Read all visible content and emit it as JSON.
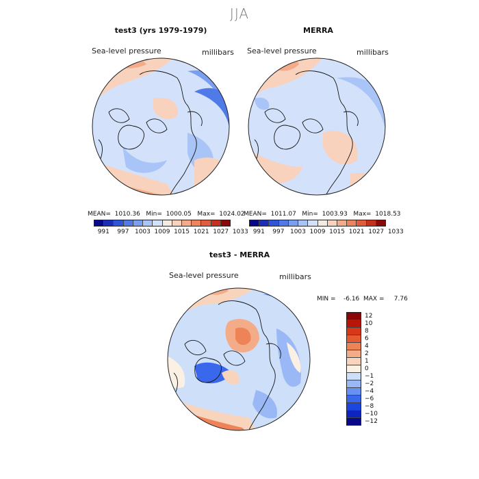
{
  "season": "JJA",
  "panels": [
    {
      "title": "test3 (yrs 1979-1979)",
      "variable": "Sea-level pressure",
      "units": "millibars",
      "stats": "MEAN=  1010.36   Min=  1000.05   Max=  1024.02"
    },
    {
      "title": "MERRA",
      "variable": "Sea-level pressure",
      "units": "millibars",
      "stats": "MEAN=  1011.07   Min=  1003.93   Max=  1018.53"
    },
    {
      "title": "test3 - MERRA",
      "variable": "Sea-level pressure",
      "units": "millibars",
      "stats": "MIN =    -6.16  MAX =     7.76"
    }
  ],
  "colorbar_abs": {
    "colors": [
      "#08088a",
      "#1a2fb8",
      "#2f55d8",
      "#4f7ae8",
      "#7a9ef0",
      "#a9c4f6",
      "#d3e2fa",
      "#f4ece0",
      "#f8d2bc",
      "#f3ab8a",
      "#ec8460",
      "#e05c3c",
      "#c4311c",
      "#8a0a0a"
    ],
    "labels": [
      "991",
      "997",
      "1003",
      "1009",
      "1015",
      "1021",
      "1027",
      "1033"
    ]
  },
  "colorbar_diff": {
    "colors": [
      "#08088a",
      "#0d24c0",
      "#1d45e0",
      "#3a68ec",
      "#6690f2",
      "#9bb8f6",
      "#cddff9",
      "#fbf0e4",
      "#f9d4bc",
      "#f4ac88",
      "#ee8358",
      "#e55a30",
      "#d8381a",
      "#b81408",
      "#8a0606"
    ],
    "labels": [
      "12",
      "10",
      "8",
      "6",
      "4",
      "2",
      "1",
      "0",
      "−1",
      "−2",
      "−4",
      "−6",
      "−8",
      "−10",
      "−12"
    ]
  }
}
